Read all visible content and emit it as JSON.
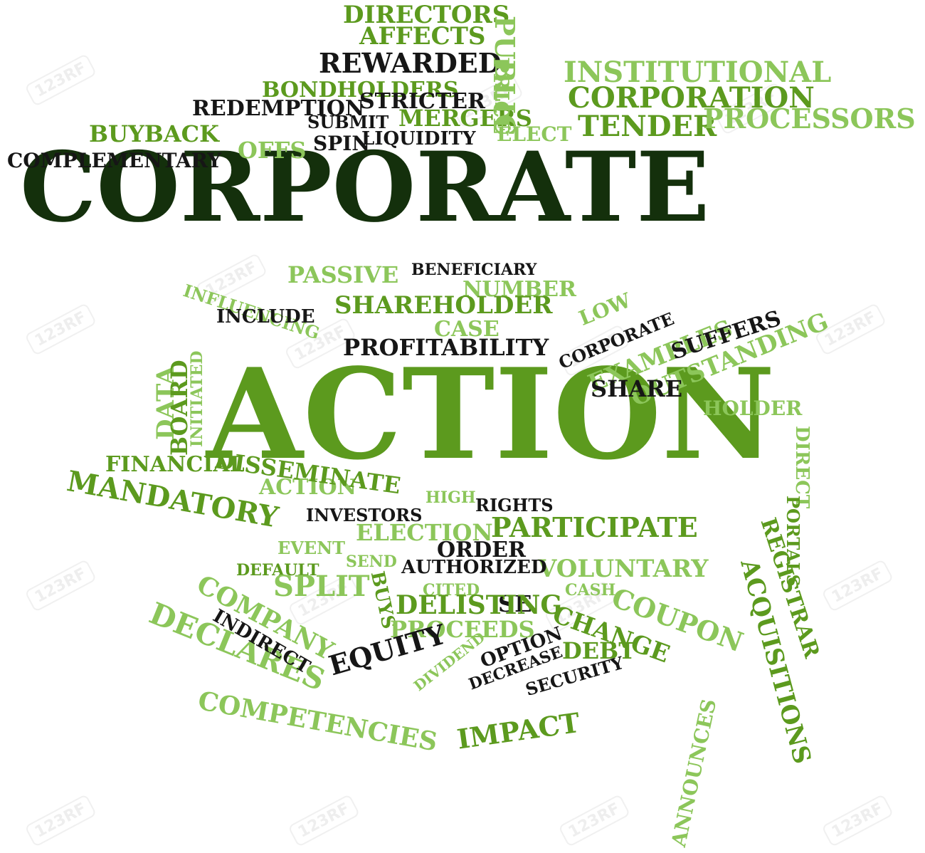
{
  "colors": {
    "dark": "#14300c",
    "mid": "#5c9a1e",
    "light": "#8cc65a",
    "black": "#161616"
  },
  "watermark_text": "123RF",
  "words": [
    {
      "text": "CORPORATE",
      "c": "dark"
    },
    {
      "text": "ACTION",
      "c": "mid"
    },
    {
      "text": "DIRECTORS",
      "c": "mid"
    },
    {
      "text": "AFFECTS",
      "c": "mid"
    },
    {
      "text": "REWARDED",
      "c": "black"
    },
    {
      "text": "BONDHOLDERS",
      "c": "mid"
    },
    {
      "text": "REDEMPTION",
      "c": "black"
    },
    {
      "text": "STRICTER",
      "c": "black"
    },
    {
      "text": "SUBMIT",
      "c": "black"
    },
    {
      "text": "MERGERS",
      "c": "mid"
    },
    {
      "text": "BUYBACK",
      "c": "mid"
    },
    {
      "text": "COMPLEMENTARY",
      "c": "black"
    },
    {
      "text": "OFFS",
      "c": "light"
    },
    {
      "text": "SPIN",
      "c": "black"
    },
    {
      "text": "LIQUIDITY",
      "c": "black"
    },
    {
      "text": "ELECT",
      "c": "light"
    },
    {
      "text": "PUBLIC",
      "c": "light"
    },
    {
      "text": "PRICE",
      "c": "light"
    },
    {
      "text": "INSTITUTIONAL",
      "c": "light"
    },
    {
      "text": "CORPORATION",
      "c": "mid"
    },
    {
      "text": "TENDER",
      "c": "mid"
    },
    {
      "text": "PROCESSORS",
      "c": "light"
    },
    {
      "text": "PASSIVE",
      "c": "light"
    },
    {
      "text": "BENEFICIARY",
      "c": "black"
    },
    {
      "text": "NUMBER",
      "c": "light"
    },
    {
      "text": "LOW",
      "c": "light"
    },
    {
      "text": "CORPORATE",
      "c": "black"
    },
    {
      "text": "EXAMPLES",
      "c": "light"
    },
    {
      "text": "OUTSTANDING",
      "c": "light"
    },
    {
      "text": "INFLUENCING",
      "c": "light"
    },
    {
      "text": "SHAREHOLDER",
      "c": "mid"
    },
    {
      "text": "INCLUDE",
      "c": "black"
    },
    {
      "text": "CASE",
      "c": "light"
    },
    {
      "text": "PROFITABILITY",
      "c": "black"
    },
    {
      "text": "SUFFERS",
      "c": "black"
    },
    {
      "text": "SHARE",
      "c": "black"
    },
    {
      "text": "HOLDER",
      "c": "light"
    },
    {
      "text": "DATA",
      "c": "light"
    },
    {
      "text": "BOARD",
      "c": "mid"
    },
    {
      "text": "INITIATED",
      "c": "light"
    },
    {
      "text": "DIRECT",
      "c": "light"
    },
    {
      "text": "PORTALS",
      "c": "mid"
    },
    {
      "text": "REGISTRAR",
      "c": "mid"
    },
    {
      "text": "ACQUISITIONS",
      "c": "mid"
    },
    {
      "text": "FINANCIAL",
      "c": "mid"
    },
    {
      "text": "ACTION",
      "c": "light"
    },
    {
      "text": "DISSEMINATE",
      "c": "mid"
    },
    {
      "text": "MANDATORY",
      "c": "mid"
    },
    {
      "text": "HIGH",
      "c": "light"
    },
    {
      "text": "RIGHTS",
      "c": "black"
    },
    {
      "text": "INVESTORS",
      "c": "black"
    },
    {
      "text": "PARTICIPATE",
      "c": "mid"
    },
    {
      "text": "EVENT",
      "c": "light"
    },
    {
      "text": "ELECTION",
      "c": "light"
    },
    {
      "text": "ORDER",
      "c": "black"
    },
    {
      "text": "VOLUNTARY",
      "c": "light"
    },
    {
      "text": "DEFAULT",
      "c": "mid"
    },
    {
      "text": "SEND",
      "c": "light"
    },
    {
      "text": "AUTHORIZED",
      "c": "black"
    },
    {
      "text": "SPLIT",
      "c": "light"
    },
    {
      "text": "CITED",
      "c": "light"
    },
    {
      "text": "CASH",
      "c": "light"
    },
    {
      "text": "SE",
      "c": "black"
    },
    {
      "text": "COUPON",
      "c": "light"
    },
    {
      "text": "COMPANY",
      "c": "light"
    },
    {
      "text": "BUYS",
      "c": "mid"
    },
    {
      "text": "DELISTING",
      "c": "mid"
    },
    {
      "text": "CHANGE",
      "c": "mid"
    },
    {
      "text": "PROCEEDS",
      "c": "light"
    },
    {
      "text": "DEBT",
      "c": "mid"
    },
    {
      "text": "DECLARES",
      "c": "light"
    },
    {
      "text": "INDIRECT",
      "c": "black"
    },
    {
      "text": "EQUITY",
      "c": "black"
    },
    {
      "text": "DIVIDEND",
      "c": "light"
    },
    {
      "text": "OPTION",
      "c": "black"
    },
    {
      "text": "DECREASE",
      "c": "black"
    },
    {
      "text": "SECURITY",
      "c": "black"
    },
    {
      "text": "ANNOUNCES",
      "c": "light"
    },
    {
      "text": "COMPETENCIES",
      "c": "light"
    },
    {
      "text": "IMPACT",
      "c": "mid"
    }
  ]
}
